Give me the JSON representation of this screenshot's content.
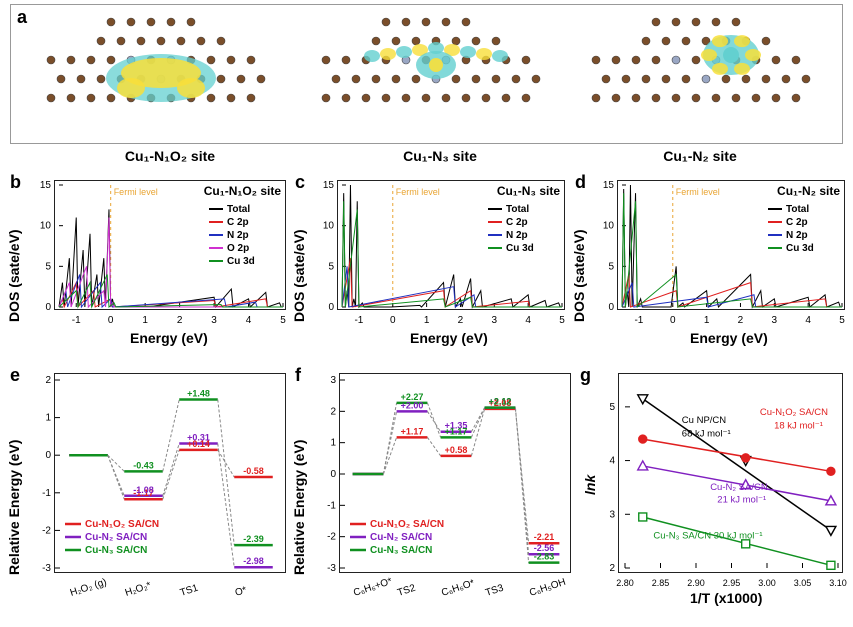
{
  "panel_a": {
    "label": "a",
    "sites": [
      {
        "name": "Cu₁-N₁O₂ site",
        "isosurf_colors": [
          "#f8df3a",
          "#63d0d0"
        ]
      },
      {
        "name": "Cu₁-N₃ site",
        "isosurf_colors": [
          "#f8df3a",
          "#63d0d0"
        ]
      },
      {
        "name": "Cu₁-N₂ site",
        "isosurf_colors": [
          "#f8df3a",
          "#63d0d0"
        ]
      }
    ],
    "atom_colors": {
      "C": "#7a4e2a",
      "N": "#9aa7c4",
      "O": "#c04040",
      "Cu": "#2d7a7a"
    }
  },
  "dos": {
    "xlabel": "Energy (eV)",
    "ylabel": "DOS (sate/eV)",
    "xlim": [
      -1.5,
      5.0
    ],
    "xtick_step": 1,
    "ylim": [
      0,
      15
    ],
    "ytick_step": 5,
    "fermi_label": "Fermi level",
    "fermi_color": "#e9a534",
    "colors": {
      "Total": "#000000",
      "C 2p": "#e02020",
      "N 2p": "#2030c0",
      "O 2p": "#d030d0",
      "Cu 3d": "#109020"
    },
    "series_order_5": [
      "Total",
      "C 2p",
      "N 2p",
      "O 2p",
      "Cu 3d"
    ],
    "series_order_4": [
      "Total",
      "C 2p",
      "N 2p",
      "Cu 3d"
    ],
    "panels": {
      "b": {
        "label": "b",
        "title": "Cu₁-N₁O₂ site",
        "series": "series_order_5",
        "data": {
          "Total": [
            [
              -1.4,
              3
            ],
            [
              -1.2,
              6
            ],
            [
              -1.0,
              11
            ],
            [
              -0.8,
              7
            ],
            [
              -0.6,
              9
            ],
            [
              -0.4,
              4
            ],
            [
              -0.2,
              6
            ],
            [
              -0.05,
              12
            ],
            [
              0.05,
              1
            ],
            [
              0.5,
              0
            ],
            [
              1,
              0
            ],
            [
              3,
              1.2
            ],
            [
              3.5,
              2.2
            ],
            [
              4,
              1
            ],
            [
              4.5,
              1.8
            ],
            [
              4.9,
              0.5
            ]
          ],
          "C 2p": [
            [
              -1.4,
              1
            ],
            [
              -1.0,
              3
            ],
            [
              -0.5,
              2
            ],
            [
              0,
              1
            ],
            [
              3,
              0.8
            ],
            [
              4.5,
              1.0
            ]
          ],
          "N 2p": [
            [
              -1.3,
              2
            ],
            [
              -0.9,
              4
            ],
            [
              -0.3,
              3
            ],
            [
              0,
              1
            ],
            [
              3.3,
              1
            ],
            [
              4.2,
              0.6
            ]
          ],
          "O 2p": [
            [
              -1.2,
              3
            ],
            [
              -0.7,
              5
            ],
            [
              -0.2,
              2
            ],
            [
              -0.05,
              11
            ],
            [
              0.05,
              0.5
            ]
          ],
          "Cu 3d": [
            [
              -1.0,
              2
            ],
            [
              -0.6,
              3
            ],
            [
              -0.1,
              4
            ],
            [
              0.1,
              0.5
            ],
            [
              3.2,
              0.3
            ]
          ]
        }
      },
      "c": {
        "label": "c",
        "title": "Cu₁-N₃ site",
        "series": "series_order_4",
        "data": {
          "Total": [
            [
              -1.45,
              14
            ],
            [
              -1.35,
              2
            ],
            [
              -1.25,
              15
            ],
            [
              -1.15,
              1
            ],
            [
              -1.05,
              13
            ],
            [
              -0.9,
              0.5
            ],
            [
              -0.1,
              0
            ],
            [
              0.8,
              0.2
            ],
            [
              1.5,
              3
            ],
            [
              1.8,
              4
            ],
            [
              2.0,
              1
            ],
            [
              2.3,
              3.5
            ],
            [
              2.6,
              2
            ],
            [
              3.5,
              1
            ],
            [
              4.0,
              1.5
            ],
            [
              4.5,
              0.8
            ],
            [
              4.9,
              0.5
            ]
          ],
          "C 2p": [
            [
              -1.25,
              6
            ],
            [
              1.5,
              2
            ],
            [
              2.3,
              2
            ],
            [
              4.0,
              0.7
            ]
          ],
          "N 2p": [
            [
              -1.35,
              5
            ],
            [
              1.8,
              2.5
            ],
            [
              2.4,
              1.5
            ]
          ],
          "Cu 3d": [
            [
              -1.45,
              13
            ],
            [
              -1.05,
              12
            ],
            [
              1.5,
              1
            ],
            [
              2.3,
              1.2
            ]
          ]
        }
      },
      "d": {
        "label": "d",
        "title": "Cu₁-N₂ site",
        "series": "series_order_4",
        "data": {
          "Total": [
            [
              -1.45,
              14.5
            ],
            [
              -1.35,
              2
            ],
            [
              -1.25,
              15
            ],
            [
              -1.1,
              14
            ],
            [
              -0.95,
              1
            ],
            [
              -0.1,
              0
            ],
            [
              0.1,
              5
            ],
            [
              0.3,
              0.5
            ],
            [
              1.0,
              2
            ],
            [
              1.3,
              1
            ],
            [
              2.3,
              4
            ],
            [
              2.6,
              2
            ],
            [
              3.0,
              1
            ],
            [
              4.0,
              1.2
            ],
            [
              4.5,
              1.5
            ],
            [
              4.9,
              0.6
            ]
          ],
          "C 2p": [
            [
              -1.3,
              4
            ],
            [
              0.1,
              2
            ],
            [
              2.3,
              3
            ],
            [
              4.5,
              1.0
            ]
          ],
          "N 2p": [
            [
              -1.2,
              3
            ],
            [
              1.0,
              1.2
            ],
            [
              2.4,
              1.5
            ]
          ],
          "Cu 3d": [
            [
              -1.45,
              14
            ],
            [
              -1.1,
              13
            ],
            [
              0.1,
              4
            ],
            [
              2.3,
              1
            ]
          ]
        }
      }
    }
  },
  "energy_e": {
    "label": "e",
    "ylabel": "Relative Energy (eV)",
    "stages": [
      "H₂O₂ (g)",
      "H₂O₂*",
      "TS1",
      "O*"
    ],
    "ylim": [
      -3,
      2
    ],
    "ytick_step": 1,
    "colors": {
      "Cu-N₁O₂ SA/CN": "#e02020",
      "Cu-N₂ SA/CN": "#8020c0",
      "Cu-N₃ SA/CN": "#109020"
    },
    "series": [
      {
        "name": "Cu-N₁O₂ SA/CN",
        "values": [
          0.0,
          -1.17,
          0.14,
          -0.58
        ]
      },
      {
        "name": "Cu-N₂ SA/CN",
        "values": [
          0.0,
          -1.08,
          0.31,
          -2.98
        ]
      },
      {
        "name": "Cu-N₃ SA/CN",
        "values": [
          0.0,
          -0.43,
          1.48,
          -2.39
        ]
      }
    ],
    "annot": [
      {
        "text": "-0.43",
        "color": "#109020"
      },
      {
        "text": "-1.08",
        "color": "#8020c0"
      },
      {
        "text": "-1.17",
        "color": "#e02020"
      },
      {
        "text": "+1.48",
        "color": "#109020"
      },
      {
        "text": "+0.31",
        "color": "#8020c0"
      },
      {
        "text": "+0.14",
        "color": "#e02020"
      },
      {
        "text": "-0.58",
        "color": "#e02020"
      },
      {
        "text": "-2.39",
        "color": "#109020"
      },
      {
        "text": "-2.98",
        "color": "#8020c0"
      }
    ]
  },
  "energy_f": {
    "label": "f",
    "ylabel": "Relative Energy (eV)",
    "stages": [
      "C₆H₆+O*",
      "TS2",
      "C₆H₆O*",
      "TS3",
      "C₆H₅OH"
    ],
    "ylim": [
      -3,
      3
    ],
    "ytick_step": 1,
    "colors": {
      "Cu-N₁O₂ SA/CN": "#e02020",
      "Cu-N₂ SA/CN": "#8020c0",
      "Cu-N₃ SA/CN": "#109020"
    },
    "series": [
      {
        "name": "Cu-N₁O₂ SA/CN",
        "values": [
          0.0,
          1.17,
          0.58,
          2.08,
          -2.21
        ]
      },
      {
        "name": "Cu-N₂ SA/CN",
        "values": [
          0.0,
          2.0,
          1.35,
          2.12,
          -2.56
        ]
      },
      {
        "name": "Cu-N₃ SA/CN",
        "values": [
          0.0,
          2.27,
          1.17,
          2.12,
          -2.83
        ]
      }
    ],
    "annot": [
      {
        "text": "+2.27",
        "color": "#109020"
      },
      {
        "text": "+2.00",
        "color": "#8020c0"
      },
      {
        "text": "+1.17",
        "color": "#e02020"
      },
      {
        "text": "+1.35",
        "color": "#8020c0"
      },
      {
        "text": "+0.58",
        "color": "#e02020"
      },
      {
        "text": "+2.12",
        "color": "#109020"
      },
      {
        "text": "+2.08",
        "color": "#e02020"
      },
      {
        "text": "-2.21",
        "color": "#e02020"
      },
      {
        "text": "-2.56",
        "color": "#8020c0"
      },
      {
        "text": "-2.83",
        "color": "#109020"
      }
    ]
  },
  "arrhenius": {
    "label": "g",
    "xlabel": "1/T (x1000)",
    "ylabel": "lnk",
    "xlim": [
      2.8,
      3.1
    ],
    "xticks": [
      2.8,
      2.85,
      2.9,
      2.95,
      3.0,
      3.05,
      3.1
    ],
    "ylim": [
      2,
      5.5
    ],
    "yticks": [
      2,
      3,
      4,
      5
    ],
    "series": [
      {
        "name": "Cu NP/CN",
        "label": "Cu NP/CN\n68 kJ mol⁻¹",
        "color": "#000000",
        "marker": "triangle-down",
        "open": true,
        "points": [
          [
            2.825,
            5.15
          ],
          [
            2.97,
            4.0
          ],
          [
            3.09,
            2.7
          ]
        ]
      },
      {
        "name": "Cu-N1O2",
        "label": "Cu-N₁O₂ SA/CN\n18 kJ mol⁻¹",
        "color": "#e02020",
        "marker": "circle",
        "open": false,
        "points": [
          [
            2.825,
            4.4
          ],
          [
            2.97,
            4.05
          ],
          [
            3.09,
            3.8
          ]
        ]
      },
      {
        "name": "Cu-N2",
        "label": "Cu-N₂ SA/CN\n21 kJ mol⁻¹",
        "color": "#8020c0",
        "marker": "triangle-up",
        "open": true,
        "points": [
          [
            2.825,
            3.9
          ],
          [
            2.97,
            3.55
          ],
          [
            3.09,
            3.25
          ]
        ]
      },
      {
        "name": "Cu-N3",
        "label": "Cu-N₃ SA/CN 30 kJ mol⁻¹",
        "color": "#109020",
        "marker": "square",
        "open": true,
        "points": [
          [
            2.825,
            2.95
          ],
          [
            2.97,
            2.45
          ],
          [
            3.09,
            2.05
          ]
        ]
      }
    ]
  },
  "font": {
    "family": "Arial",
    "label_fontsize": 14,
    "tick_fontsize": 10,
    "value_fontsize": 10
  }
}
